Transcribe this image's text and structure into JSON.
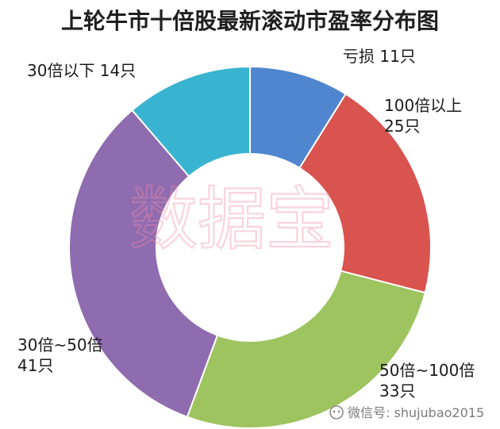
{
  "chart_data": {
    "type": "pie",
    "title": "上轮牛市十倍股最新滚动市盈率分布图",
    "categories": [
      "亏损",
      "100倍以上",
      "50倍~100倍",
      "30倍~50倍",
      "30倍以下"
    ],
    "values": [
      11,
      25,
      33,
      41,
      14
    ],
    "colors": [
      "#4f86cf",
      "#d9534f",
      "#9dc45f",
      "#8f6bb0",
      "#39b4d0"
    ],
    "donut": true,
    "legend": "none",
    "labels": [
      {
        "line1": "亏损  11只",
        "line2": ""
      },
      {
        "line1": "100倍以上",
        "line2": "25只"
      },
      {
        "line1": "50倍~100倍",
        "line2": "33只"
      },
      {
        "line1": "30倍~50倍",
        "line2": "41只"
      },
      {
        "line1": "30倍以下  14只",
        "line2": ""
      }
    ],
    "watermark": "数据宝",
    "credit": "微信号: shujubao2015"
  }
}
